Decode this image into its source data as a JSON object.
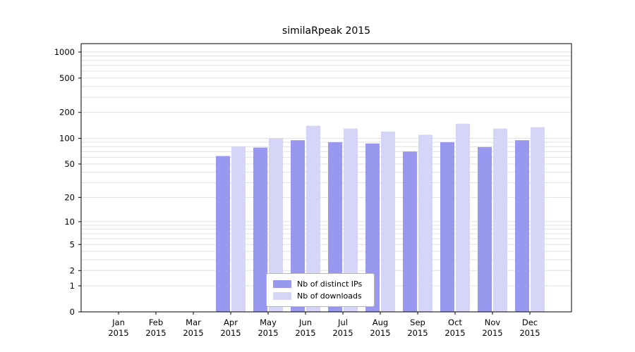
{
  "colors": {
    "distinct_ips": "#9898ee",
    "downloads": "#d5d5f7",
    "grid": "#e0e0e0",
    "axis": "#000000",
    "background": "#ffffff"
  },
  "legend": {
    "items": [
      {
        "label": "Nb of distinct IPs",
        "color": "#9898ee"
      },
      {
        "label": "Nb of downloads",
        "color": "#d5d5f7"
      }
    ],
    "position": "bottom-center"
  },
  "chart_data": {
    "type": "bar",
    "title": "similaRpeak 2015",
    "scale": "log1p",
    "grid": true,
    "categories": [
      "Jan 2015",
      "Feb 2015",
      "Mar 2015",
      "Apr 2015",
      "May 2015",
      "Jun 2015",
      "Jul 2015",
      "Aug 2015",
      "Sep 2015",
      "Oct 2015",
      "Nov 2015",
      "Dec 2015"
    ],
    "series": [
      {
        "name": "Nb of distinct IPs",
        "values": [
          0,
          0,
          0,
          62,
          78,
          95,
          90,
          87,
          70,
          90,
          79,
          95
        ]
      },
      {
        "name": "Nb of downloads",
        "values": [
          0,
          0,
          0,
          80,
          100,
          140,
          130,
          120,
          110,
          148,
          130,
          135
        ]
      }
    ],
    "yticks": [
      0,
      1,
      2,
      5,
      10,
      20,
      50,
      100,
      200,
      500,
      1000
    ],
    "ylim": [
      0,
      1250
    ],
    "xlabel": "",
    "ylabel": ""
  }
}
